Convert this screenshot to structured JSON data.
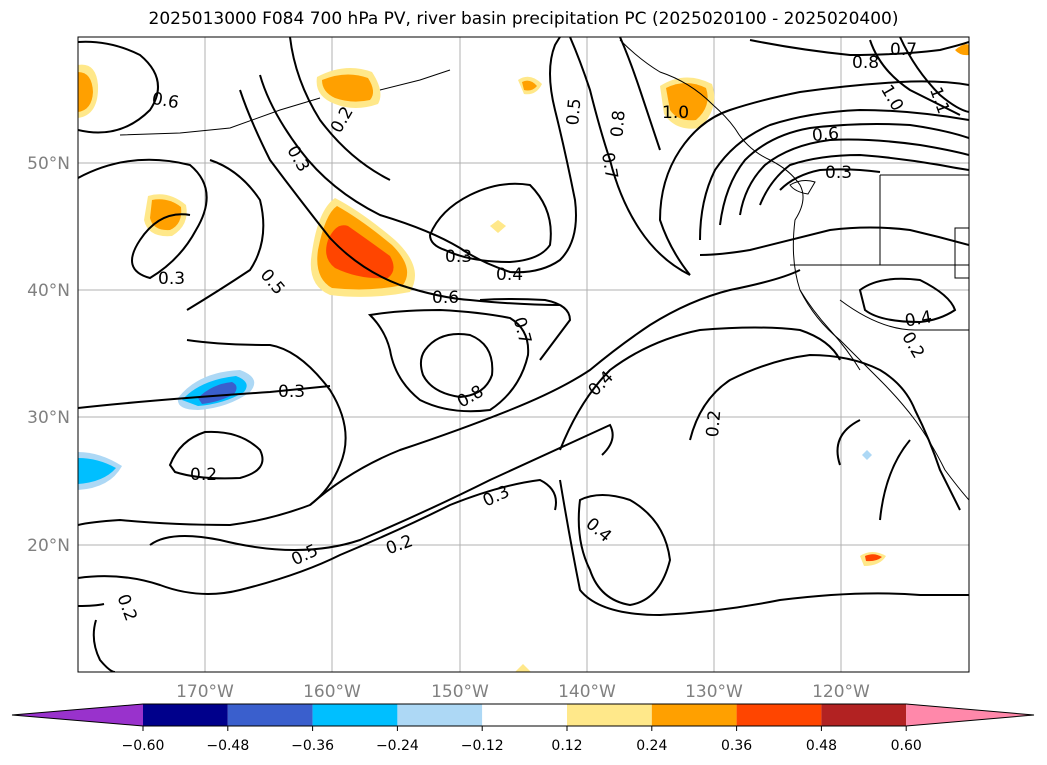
{
  "title": "2025013000 F084 700 hPa PV, river basin precipitation PC (2025020100 - 2025020400)",
  "map": {
    "lat_labels": [
      "50°N",
      "40°N",
      "30°N",
      "20°N"
    ],
    "lon_labels": [
      "170°W",
      "160°W",
      "150°W",
      "140°W",
      "130°W",
      "120°W"
    ],
    "contour_labels": [
      "0.7",
      "0.8",
      "1.0",
      "1.1",
      "0.6",
      "0.2",
      "0.5",
      "0.8",
      "0.7",
      "0.6",
      "0.3",
      "0.3",
      "0.3",
      "0.4",
      "0.6",
      "0.5",
      "0.7",
      "0.8",
      "0.3",
      "0.4",
      "0.2",
      "0.3",
      "0.3",
      "0.4",
      "0.2",
      "0.5",
      "0.2",
      "0.2",
      "0.4",
      "0.2",
      "1.0"
    ]
  },
  "colorbar": {
    "ticks": [
      "−0.60",
      "−0.48",
      "−0.36",
      "−0.24",
      "−0.12",
      "0.12",
      "0.24",
      "0.36",
      "0.48",
      "0.60"
    ],
    "colors": [
      "#9932cc",
      "#00008b",
      "#3a5fcd",
      "#00bfff",
      "#add8f5",
      "#ffffff",
      "#ffe88a",
      "#ffa000",
      "#ff4500",
      "#b22222",
      "#ff88aa"
    ]
  }
}
